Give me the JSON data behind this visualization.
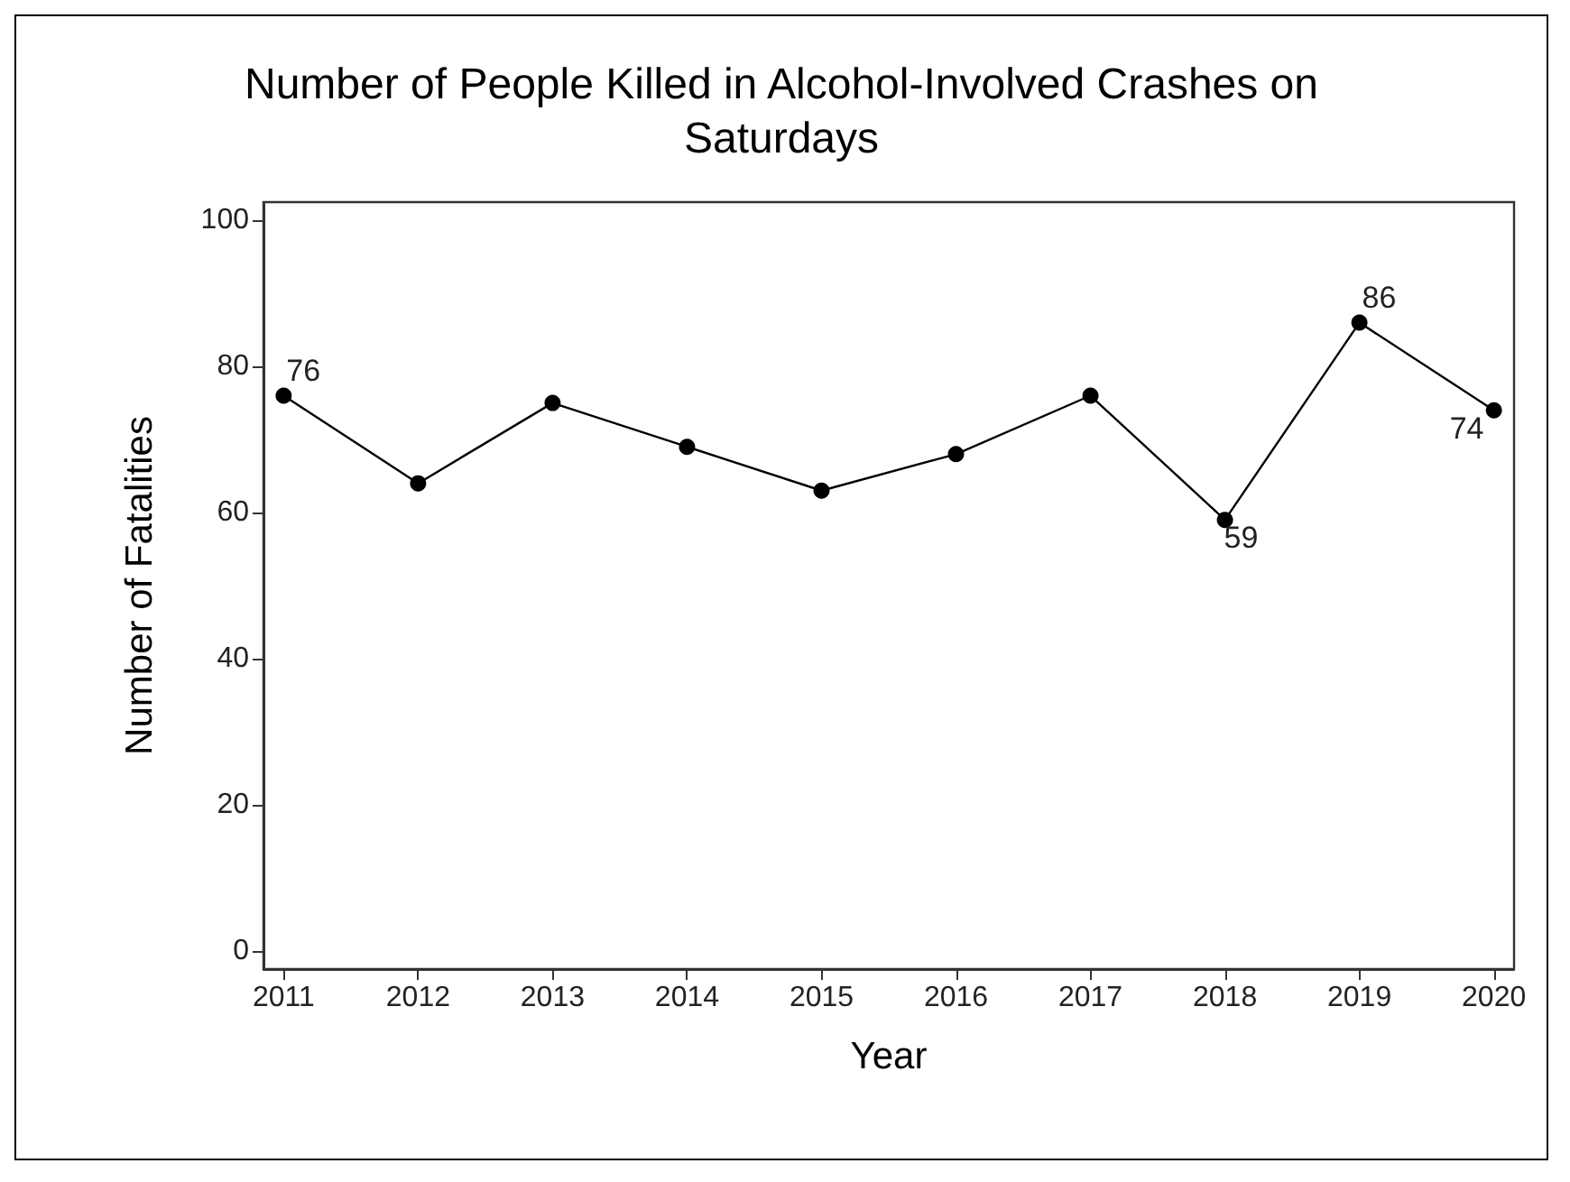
{
  "chart_data": {
    "type": "line",
    "title": "Number of People Killed in Alcohol-Involved Crashes on\nSaturdays",
    "xlabel": "Year",
    "ylabel": "Number of Fatalities",
    "x": [
      2011,
      2012,
      2013,
      2014,
      2015,
      2016,
      2017,
      2018,
      2019,
      2020
    ],
    "series": [
      {
        "color": "#000000",
        "values": [
          76,
          64,
          75,
          69,
          63,
          68,
          76,
          59,
          86,
          74
        ],
        "value_labels": [
          "76",
          null,
          null,
          null,
          null,
          null,
          null,
          "59",
          "86",
          "74"
        ]
      }
    ],
    "xlim": [
      2010.85,
      2020.15
    ],
    "xticks": [
      2011,
      2012,
      2013,
      2014,
      2015,
      2016,
      2017,
      2018,
      2019,
      2020
    ],
    "ylim": [
      -2.5,
      102.5
    ],
    "yticks": [
      0,
      20,
      40,
      60,
      80,
      100
    ],
    "grid": false,
    "marker": "circle",
    "line_style": "solid"
  }
}
